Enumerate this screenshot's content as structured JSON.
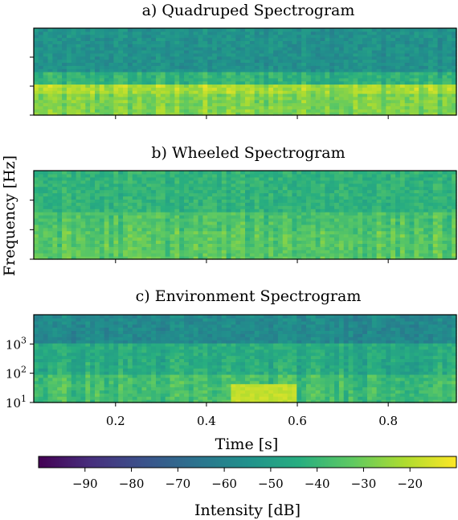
{
  "chart_data": [
    {
      "type": "heatmap",
      "title": "a) Quadruped Spectrogram",
      "xlim": [
        0.02,
        0.95
      ],
      "yscale": "log",
      "ylim": [
        10,
        10000
      ],
      "xticks": [
        0.2,
        0.4,
        0.6,
        0.8
      ],
      "xticklabels_visible": false,
      "yticklabels_visible": false,
      "bands": [
        {
          "from": 10,
          "to": 50,
          "level_db": -28
        },
        {
          "from": 50,
          "to": 130,
          "level_db": -22
        },
        {
          "from": 130,
          "to": 300,
          "level_db": -42
        },
        {
          "from": 300,
          "to": 10000,
          "level_db": -55
        }
      ]
    },
    {
      "type": "heatmap",
      "title": "b) Wheeled Spectrogram",
      "xlim": [
        0.02,
        0.95
      ],
      "yscale": "log",
      "ylim": [
        10,
        10000
      ],
      "xticks": [
        0.2,
        0.4,
        0.6,
        0.8
      ],
      "xticklabels_visible": false,
      "yticklabels_visible": false,
      "bands": [
        {
          "from": 10,
          "to": 100,
          "level_db": -34
        },
        {
          "from": 100,
          "to": 400,
          "level_db": -36
        },
        {
          "from": 400,
          "to": 10000,
          "level_db": -42
        }
      ]
    },
    {
      "type": "heatmap",
      "title": "c) Environment Spectrogram",
      "xlim": [
        0.02,
        0.95
      ],
      "xticks": [
        0.2,
        0.4,
        0.6,
        0.8
      ],
      "xticklabels": [
        "0.2",
        "0.4",
        "0.6",
        "0.8"
      ],
      "xlabel": "Time [s]",
      "yscale": "log",
      "ylim": [
        10,
        10000
      ],
      "yticks": [
        10,
        100,
        1000
      ],
      "yticklabels": [
        {
          "base": "10",
          "exp": "1"
        },
        {
          "base": "10",
          "exp": "2"
        },
        {
          "base": "10",
          "exp": "3"
        }
      ],
      "bands": [
        {
          "from": 10,
          "to": 100,
          "level_db": -38
        },
        {
          "from": 100,
          "to": 1000,
          "level_db": -45
        },
        {
          "from": 1000,
          "to": 10000,
          "level_db": -58
        }
      ],
      "hotspot": {
        "x": [
          0.45,
          0.6
        ],
        "y": [
          10,
          40
        ],
        "level_db": -18
      }
    }
  ],
  "shared_ylabel": "Frequency [Hz]",
  "colorbar": {
    "colormap": "viridis",
    "range": [
      -100,
      -10
    ],
    "ticks": [
      -90,
      -80,
      -70,
      -60,
      -50,
      -40,
      -30,
      -20
    ],
    "ticklabels": [
      "−90",
      "−80",
      "−70",
      "−60",
      "−50",
      "−40",
      "−30",
      "−20"
    ],
    "label": "Intensity [dB]"
  }
}
